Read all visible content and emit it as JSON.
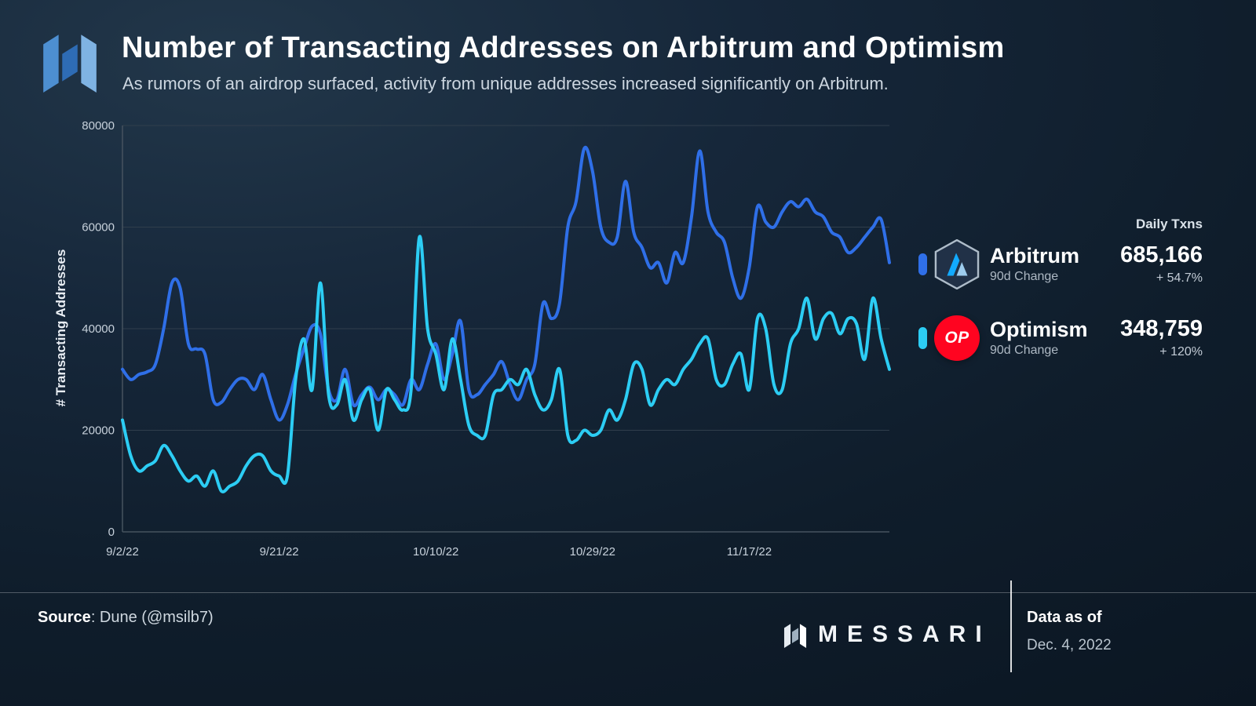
{
  "header": {
    "title": "Number of Transacting Addresses on Arbitrum and Optimism",
    "subtitle": "As rumors of an airdrop surfaced, activity from unique addresses increased significantly on Arbitrum."
  },
  "legend": {
    "daily_txns_label": "Daily Txns",
    "items": [
      {
        "name": "Arbitrum",
        "sub_label": "90d Change",
        "value": "685,166",
        "change": "+ 54.7%",
        "color": "#2f6fe8",
        "badge": "arbitrum-hexagon"
      },
      {
        "name": "Optimism",
        "sub_label": "90d Change",
        "value": "348,759",
        "change": "+ 120%",
        "color": "#2ccdf4",
        "badge": "OP"
      }
    ]
  },
  "footer": {
    "source_label": "Source",
    "source_rest": ": Dune (@msilb7)",
    "brand": "MESSARI",
    "data_as_of_label": "Data as of",
    "data_as_of_value": "Dec. 4, 2022"
  },
  "chart_data": {
    "type": "line",
    "title": "Number of Transacting Addresses on Arbitrum and Optimism",
    "xlabel": "",
    "ylabel": "# Transacting Addresses",
    "ylim": [
      0,
      80000
    ],
    "yticks": [
      0,
      20000,
      40000,
      60000,
      80000
    ],
    "grid": "horizontal",
    "legend_position": "right",
    "n_points": 94,
    "x_start_label": "9/2/22",
    "xticks": [
      {
        "label": "9/2/22",
        "i": 0
      },
      {
        "label": "9/21/22",
        "i": 19
      },
      {
        "label": "10/10/22",
        "i": 38
      },
      {
        "label": "10/29/22",
        "i": 57
      },
      {
        "label": "11/17/22",
        "i": 76
      }
    ],
    "series": [
      {
        "name": "Arbitrum",
        "color": "#2f6fe8",
        "values": [
          32000,
          30000,
          31000,
          31500,
          33000,
          40000,
          49000,
          48000,
          37000,
          36000,
          35000,
          26000,
          25500,
          28000,
          30000,
          30000,
          28000,
          31000,
          26000,
          22000,
          25000,
          31000,
          36000,
          40500,
          39000,
          28000,
          26000,
          32000,
          25000,
          27000,
          28500,
          26000,
          28000,
          27000,
          25000,
          30000,
          28000,
          33000,
          37000,
          30000,
          35000,
          41500,
          28000,
          27000,
          29000,
          31000,
          33500,
          29000,
          26000,
          30000,
          33000,
          45000,
          42000,
          45000,
          60000,
          65000,
          75500,
          71000,
          60000,
          57000,
          58000,
          69000,
          59000,
          56000,
          52000,
          53000,
          49000,
          55000,
          53000,
          62000,
          75000,
          63000,
          59000,
          57000,
          50000,
          46000,
          52000,
          64000,
          61000,
          60000,
          63000,
          65000,
          64000,
          65500,
          63000,
          62000,
          59000,
          58000,
          55000,
          56000,
          58000,
          60000,
          61500,
          53000
        ]
      },
      {
        "name": "Optimism",
        "color": "#2ccdf4",
        "values": [
          22000,
          15000,
          12000,
          13000,
          14000,
          17000,
          15000,
          12000,
          10000,
          11000,
          9000,
          12000,
          8000,
          9000,
          10000,
          13000,
          15000,
          15000,
          12000,
          11000,
          11000,
          30000,
          38000,
          28000,
          49000,
          27000,
          25000,
          30000,
          22000,
          26000,
          28000,
          20000,
          28000,
          26000,
          24000,
          28000,
          58000,
          40000,
          35000,
          28000,
          38000,
          30000,
          21000,
          19000,
          19000,
          27000,
          28000,
          30000,
          29000,
          32000,
          27000,
          24000,
          26000,
          32000,
          19000,
          18000,
          20000,
          19000,
          20000,
          24000,
          22000,
          26000,
          33000,
          32000,
          25000,
          28000,
          30000,
          29000,
          32000,
          34000,
          37000,
          38000,
          30000,
          29000,
          33000,
          35000,
          28000,
          42000,
          40000,
          29000,
          28000,
          37000,
          40000,
          46000,
          38000,
          42000,
          43000,
          39000,
          42000,
          41000,
          34000,
          46000,
          38000,
          32000
        ]
      }
    ]
  }
}
